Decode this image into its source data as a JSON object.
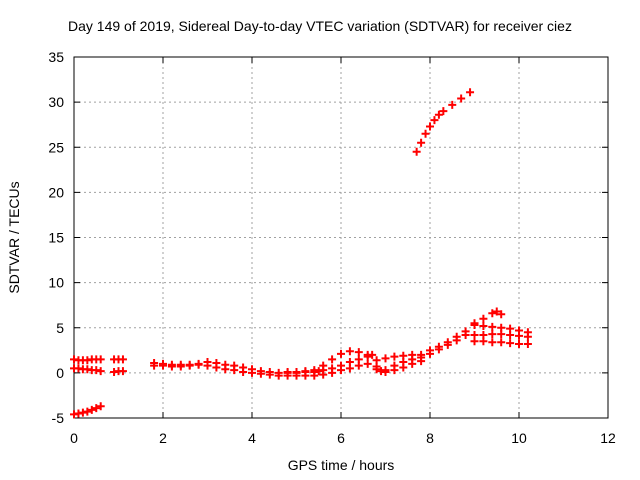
{
  "chart_data": {
    "type": "scatter",
    "title": "Day 149 of 2019, Sidereal Day-to-day VTEC variation (SDTVAR) for receiver ciez",
    "xlabel": "GPS time / hours",
    "ylabel": "SDTVAR / TECUs",
    "xlim": [
      0,
      12
    ],
    "ylim": [
      -5,
      35
    ],
    "xticks": [
      "0",
      "2",
      "4",
      "6",
      "8",
      "10",
      "12"
    ],
    "yticks": [
      "-5",
      "0",
      "5",
      "10",
      "15",
      "20",
      "25",
      "30",
      "35"
    ],
    "grid": true,
    "marker": "+",
    "color": "#ff0000",
    "series": [
      {
        "x": [
          0.0,
          0.1,
          0.2,
          0.3,
          0.4,
          0.5,
          0.6,
          0.0,
          0.1,
          0.2,
          0.3,
          0.4,
          0.5,
          0.6,
          0.0,
          0.1,
          0.2,
          0.3,
          0.4,
          0.5,
          0.6,
          0.9,
          1.0,
          1.1,
          0.9,
          1.0,
          1.1,
          1.8,
          2.0,
          2.2,
          2.4,
          2.6,
          2.8,
          3.0,
          3.2,
          3.4,
          3.6,
          3.8,
          4.0,
          4.2,
          4.4,
          4.6,
          4.8,
          5.0,
          5.2,
          5.4,
          5.6,
          5.8,
          6.0,
          6.2,
          6.4,
          6.6,
          6.8,
          7.0,
          7.2,
          7.4,
          7.6,
          7.8,
          8.0,
          8.2,
          8.4,
          8.6,
          8.8,
          1.8,
          2.0,
          2.2,
          2.4,
          2.6,
          2.8,
          3.0,
          3.2,
          3.4,
          3.6,
          3.8,
          4.0,
          4.2,
          4.4,
          4.6,
          4.8,
          5.0,
          5.2,
          5.4,
          5.6,
          5.8,
          6.0,
          6.2,
          6.4,
          6.6,
          6.8,
          7.0,
          7.2,
          7.4,
          7.6,
          7.8,
          8.0,
          8.2,
          8.4,
          8.6,
          8.8,
          4.8,
          5.0,
          5.2,
          5.4,
          5.5,
          5.6,
          5.8,
          6.0,
          6.2,
          6.4,
          6.6,
          6.7,
          6.8,
          6.9,
          7.0,
          7.2,
          7.4,
          7.6,
          7.8,
          7.7,
          7.8,
          7.9,
          8.0,
          8.1,
          8.2,
          8.3,
          8.5,
          8.7,
          8.9,
          9.0,
          9.2,
          9.4,
          9.5,
          9.6,
          9.0,
          9.2,
          9.4,
          9.6,
          9.8,
          10.0,
          10.2,
          9.0,
          9.2,
          9.4,
          9.6,
          9.8,
          10.0,
          10.2,
          9.0,
          9.2,
          9.4,
          9.6,
          9.8,
          10.0,
          10.2
        ],
        "y": [
          -4.6,
          -4.5,
          -4.4,
          -4.3,
          -4.1,
          -3.9,
          -3.7,
          0.5,
          0.5,
          0.4,
          0.4,
          0.3,
          0.3,
          0.2,
          1.5,
          1.4,
          1.4,
          1.4,
          1.5,
          1.5,
          1.5,
          0.1,
          0.2,
          0.2,
          1.5,
          1.5,
          1.5,
          1.1,
          1.0,
          0.9,
          0.9,
          0.9,
          1.0,
          1.2,
          1.1,
          0.9,
          0.8,
          0.6,
          0.4,
          0.2,
          0.1,
          0.0,
          0.0,
          0.0,
          0.1,
          0.3,
          0.8,
          1.5,
          2.1,
          2.4,
          2.3,
          2.0,
          1.4,
          1.6,
          1.8,
          1.9,
          2.0,
          2.0,
          2.5,
          2.9,
          3.4,
          4.0,
          4.6,
          0.8,
          0.8,
          0.7,
          0.7,
          0.8,
          0.9,
          0.8,
          0.6,
          0.4,
          0.3,
          0.1,
          0.0,
          -0.1,
          -0.2,
          -0.3,
          -0.3,
          -0.3,
          -0.3,
          -0.3,
          -0.2,
          0.0,
          0.3,
          0.5,
          0.8,
          1.0,
          0.7,
          0.3,
          0.8,
          1.2,
          1.5,
          1.7,
          2.1,
          2.6,
          3.1,
          3.6,
          4.2,
          0.1,
          0.1,
          0.2,
          0.1,
          0.2,
          0.3,
          0.5,
          0.8,
          1.2,
          1.5,
          1.8,
          2.0,
          0.4,
          0.2,
          0.1,
          0.3,
          0.6,
          1.0,
          1.3,
          24.5,
          25.5,
          26.5,
          27.3,
          28.0,
          28.6,
          29.0,
          29.7,
          30.4,
          31.1,
          5.5,
          6.0,
          6.6,
          6.8,
          6.5,
          5.3,
          5.2,
          5.1,
          5.0,
          4.9,
          4.7,
          4.5,
          4.2,
          4.2,
          4.3,
          4.3,
          4.2,
          4.1,
          4.0,
          3.5,
          3.5,
          3.4,
          3.4,
          3.3,
          3.2,
          3.2
        ]
      }
    ]
  }
}
